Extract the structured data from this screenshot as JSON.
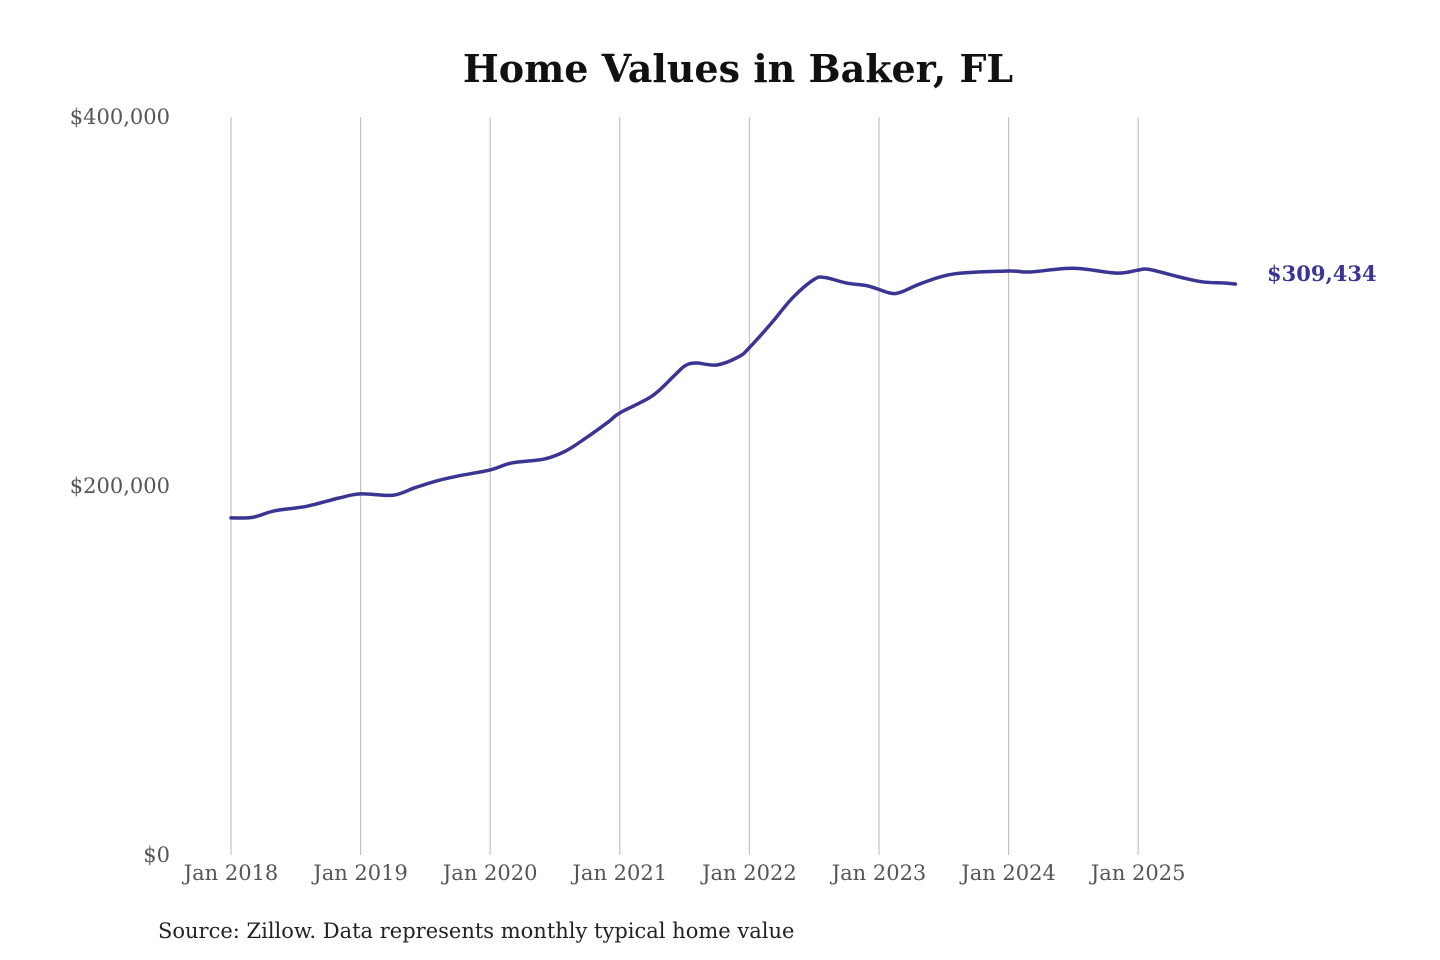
{
  "chart_data": {
    "type": "line",
    "title": "Home Values in Baker, FL",
    "xlabel": "",
    "ylabel": "",
    "ylim": [
      0,
      400000
    ],
    "y_ticks": [
      {
        "value": 0,
        "label": "$0"
      },
      {
        "value": 200000,
        "label": "$200,000"
      },
      {
        "value": 400000,
        "label": "$400,000"
      }
    ],
    "x_ticks": [
      {
        "value": "2018-01",
        "label": "Jan 2018"
      },
      {
        "value": "2019-01",
        "label": "Jan 2019"
      },
      {
        "value": "2020-01",
        "label": "Jan 2020"
      },
      {
        "value": "2021-01",
        "label": "Jan 2021"
      },
      {
        "value": "2022-01",
        "label": "Jan 2022"
      },
      {
        "value": "2023-01",
        "label": "Jan 2023"
      },
      {
        "value": "2024-01",
        "label": "Jan 2024"
      },
      {
        "value": "2025-01",
        "label": "Jan 2025"
      }
    ],
    "grid": "vertical",
    "line_color": "#3a3592",
    "end_label": "$309,434",
    "source": "Source: Zillow. Data represents monthly typical home value",
    "series": [
      {
        "points": [
          [
            "2018-01",
            182700
          ],
          [
            "2018-03",
            183000
          ],
          [
            "2018-05",
            186500
          ],
          [
            "2018-08",
            189000
          ],
          [
            "2018-11",
            193500
          ],
          [
            "2019-01",
            195700
          ],
          [
            "2019-04",
            195000
          ],
          [
            "2019-06",
            199000
          ],
          [
            "2019-08",
            202700
          ],
          [
            "2019-10",
            205400
          ],
          [
            "2020-01",
            208700
          ],
          [
            "2020-03",
            212500
          ],
          [
            "2020-06",
            214600
          ],
          [
            "2020-08",
            219000
          ],
          [
            "2020-10",
            226600
          ],
          [
            "2020-12",
            235000
          ],
          [
            "2021-01",
            239600
          ],
          [
            "2021-04",
            248800
          ],
          [
            "2021-06",
            259600
          ],
          [
            "2021-07",
            265000
          ],
          [
            "2021-08",
            266700
          ],
          [
            "2021-10",
            265600
          ],
          [
            "2021-12",
            270000
          ],
          [
            "2022-01",
            275000
          ],
          [
            "2022-03",
            288000
          ],
          [
            "2022-05",
            302000
          ],
          [
            "2022-07",
            312000
          ],
          [
            "2022-08",
            313000
          ],
          [
            "2022-10",
            310000
          ],
          [
            "2022-12",
            308400
          ],
          [
            "2023-02",
            304600
          ],
          [
            "2023-03",
            305000
          ],
          [
            "2023-05",
            310000
          ],
          [
            "2023-08",
            315000
          ],
          [
            "2024-01",
            316500
          ],
          [
            "2024-03",
            316000
          ],
          [
            "2024-07",
            318000
          ],
          [
            "2024-11",
            315400
          ],
          [
            "2025-01",
            317000
          ],
          [
            "2025-02",
            317400
          ],
          [
            "2025-05",
            313000
          ],
          [
            "2025-07",
            310600
          ],
          [
            "2025-09",
            310000
          ],
          [
            "2025-10",
            309434
          ]
        ]
      }
    ]
  }
}
